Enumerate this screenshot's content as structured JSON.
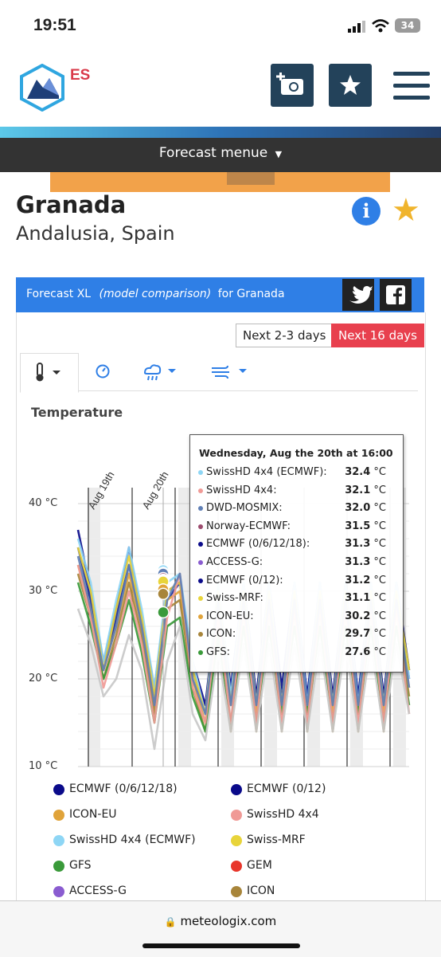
{
  "status": {
    "time": "19:51",
    "battery": "34"
  },
  "header": {
    "logo_text": "ES",
    "forecast_menu": "Forecast menue"
  },
  "location": {
    "city": "Granada",
    "region": "Andalusia, Spain"
  },
  "section": {
    "title_prefix": "Forecast XL",
    "title_italic": "(model comparison)",
    "title_suffix": "for Granada",
    "range_short": "Next 2-3 days",
    "range_long": "Next 16 days"
  },
  "chart_title": "Temperature",
  "icons": {
    "tab1": "thermometer-icon",
    "tab2": "gauge-icon",
    "tab3": "rain-cloud-icon",
    "tab4": "wind-icon"
  },
  "colors": {
    "brand_blue": "#2f7fe6",
    "active_red": "#e8404e",
    "dark_bar": "#333333",
    "navy": "#23425a"
  },
  "chart_data": {
    "type": "line",
    "ylim": [
      10,
      40
    ],
    "yticks": [
      "10 °C",
      "20 °C",
      "30 °C",
      "40 °C"
    ],
    "xlabels": [
      "Aug 19th",
      "Aug 20th"
    ],
    "tooltip": {
      "title": "Wednesday, Aug the 20th at 16:00",
      "rows": [
        {
          "name": "SwissHD 4x4 (ECMWF):",
          "value": "32.4",
          "unit": "°C",
          "color": "#8ed6f5"
        },
        {
          "name": "SwissHD 4x4:",
          "value": "32.1",
          "unit": "°C",
          "color": "#f09a96"
        },
        {
          "name": "DWD-MOSMIX:",
          "value": "32.0",
          "unit": "°C",
          "color": "#5f7fb5"
        },
        {
          "name": "Norway-ECMWF:",
          "value": "31.5",
          "unit": "°C",
          "color": "#9c4b6e"
        },
        {
          "name": "ECMWF (0/6/12/18):",
          "value": "31.3",
          "unit": "°C",
          "color": "#0a0a8a"
        },
        {
          "name": "ACCESS-G:",
          "value": "31.3",
          "unit": "°C",
          "color": "#8a5cd0"
        },
        {
          "name": "ECMWF (0/12):",
          "value": "31.2",
          "unit": "°C",
          "color": "#0a0a8a"
        },
        {
          "name": "Swiss-MRF:",
          "value": "31.1",
          "unit": "°C",
          "color": "#e8d43a"
        },
        {
          "name": "ICON-EU:",
          "value": "30.2",
          "unit": "°C",
          "color": "#e0a33a"
        },
        {
          "name": "ICON:",
          "value": "29.7",
          "unit": "°C",
          "color": "#a8853a"
        },
        {
          "name": "GFS:",
          "value": "27.6",
          "unit": "°C",
          "color": "#3a9a3a"
        }
      ]
    },
    "legend": [
      {
        "name": "ECMWF (0/6/12/18)",
        "color": "#0a0a8a"
      },
      {
        "name": "ECMWF (0/12)",
        "color": "#0a0a8a"
      },
      {
        "name": "ICON-EU",
        "color": "#e0a33a"
      },
      {
        "name": "SwissHD 4x4",
        "color": "#f09a96"
      },
      {
        "name": "SwissHD 4x4 (ECMWF)",
        "color": "#8ed6f5"
      },
      {
        "name": "Swiss-MRF",
        "color": "#e8d43a"
      },
      {
        "name": "GFS",
        "color": "#3a9a3a"
      },
      {
        "name": "GEM",
        "color": "#e8352a"
      },
      {
        "name": "ACCESS-G",
        "color": "#8a5cd0"
      },
      {
        "name": "ICON",
        "color": "#a8853a"
      }
    ],
    "series": [
      {
        "color": "#0a0a8a",
        "values": [
          37,
          30,
          22,
          28,
          35,
          27,
          19,
          30,
          31,
          22,
          17,
          30,
          19,
          31,
          18,
          31,
          19,
          31,
          18,
          31,
          18,
          31,
          18,
          31,
          18,
          31,
          21
        ]
      },
      {
        "color": "#1a2a9a",
        "values": [
          35,
          29,
          21,
          27,
          33,
          26,
          18,
          29,
          31,
          21,
          16,
          29,
          18,
          30,
          17,
          30,
          18,
          30,
          18,
          30,
          17,
          30,
          18,
          30,
          17,
          30,
          20
        ]
      },
      {
        "color": "#8ed6f5",
        "values": [
          36,
          31,
          22,
          29,
          35,
          28,
          19,
          31,
          32,
          22,
          16,
          31,
          18,
          31,
          17,
          31,
          17,
          31,
          17,
          31,
          17,
          31,
          17,
          31,
          17,
          31,
          20
        ]
      },
      {
        "color": "#e8d43a",
        "values": [
          35,
          30,
          21,
          28,
          34,
          27,
          18,
          30,
          31,
          21,
          16,
          30,
          17,
          30,
          17,
          30,
          17,
          30,
          16,
          30,
          17,
          30,
          16,
          30,
          17,
          30,
          21
        ]
      },
      {
        "color": "#e0a33a",
        "values": [
          33,
          28,
          21,
          26,
          32,
          26,
          17,
          29,
          30,
          20,
          15,
          28,
          17,
          29,
          16,
          29,
          17,
          29,
          16,
          29,
          16,
          29,
          16,
          29,
          16,
          29,
          19
        ]
      },
      {
        "color": "#a8853a",
        "values": [
          32,
          27,
          20,
          25,
          31,
          25,
          16,
          28,
          29,
          19,
          14,
          27,
          14,
          28,
          14,
          28,
          14,
          28,
          14,
          28,
          14,
          28,
          14,
          28,
          14,
          28,
          18
        ]
      },
      {
        "color": "#3a9a3a",
        "values": [
          31,
          26,
          20,
          24,
          29,
          23,
          15,
          26,
          27,
          18,
          14,
          25,
          15,
          26,
          15,
          26,
          16,
          26,
          16,
          26,
          15,
          26,
          16,
          26,
          15,
          26,
          17
        ]
      },
      {
        "color": "#f09a96",
        "values": [
          33,
          27,
          19,
          24,
          30,
          24,
          15,
          27,
          32,
          19,
          15,
          27,
          15,
          28,
          15,
          28,
          15,
          28,
          15,
          28,
          15,
          28,
          15,
          28,
          15,
          28,
          16
        ]
      },
      {
        "color": "#5f7fb5",
        "values": [
          34,
          28,
          21,
          26,
          33,
          26,
          17,
          29,
          32,
          20,
          16,
          29,
          17,
          29,
          17,
          29,
          17,
          29,
          17,
          29,
          17,
          29,
          17,
          29,
          17,
          29,
          19
        ]
      },
      {
        "color": "#c8c8c8",
        "values": [
          28,
          24,
          18,
          20,
          25,
          21,
          12,
          22,
          26,
          16,
          13,
          23,
          14,
          24,
          14,
          24,
          14,
          24,
          14,
          24,
          14,
          24,
          14,
          24,
          14,
          24,
          16
        ]
      }
    ]
  },
  "url": "meteologix.com"
}
